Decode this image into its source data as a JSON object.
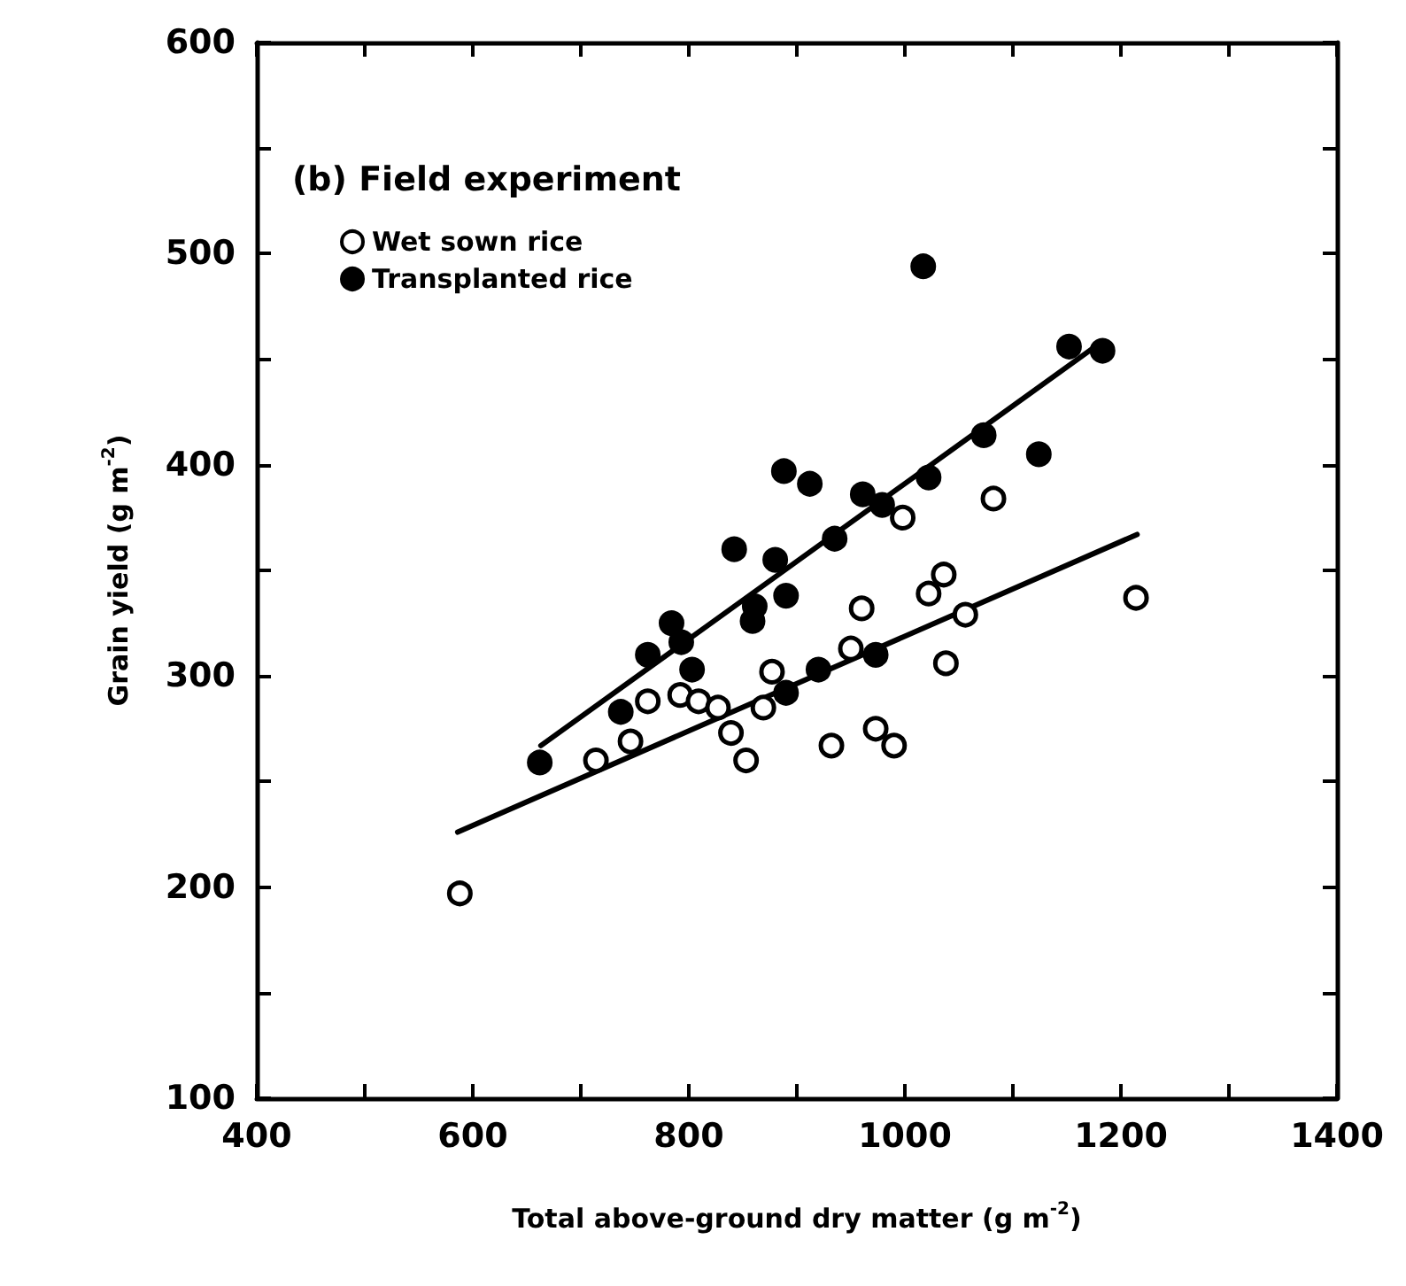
{
  "chart_data": {
    "type": "scatter",
    "legend_title": "(b) Field experiment",
    "xlabel": "Total above-ground dry matter (g m$^{-2}$)",
    "ylabel": "Grain yield (g m$^{-2}$)",
    "xlim": [
      400,
      1400
    ],
    "xticks": [
      400,
      {
        "value": 500,
        "label": null
      },
      600,
      {
        "value": 700,
        "label": null
      },
      800,
      {
        "value": 900,
        "label": null
      },
      1000,
      {
        "value": 1100,
        "label": null
      },
      1200,
      {
        "value": 1300,
        "label": null
      },
      1400
    ],
    "ylim": [
      100,
      600
    ],
    "yticks": [
      100,
      {
        "value": 150,
        "label": null
      },
      200,
      {
        "value": 250,
        "label": null
      },
      300,
      {
        "value": 350,
        "label": null
      },
      400,
      {
        "value": 450,
        "label": null
      },
      500,
      {
        "value": 550,
        "label": null
      },
      600
    ],
    "grid": false,
    "legend": "top left",
    "marker": "circle",
    "series": [
      {
        "name": "Wet sown rice",
        "color": "#ffffff",
        "x": [
          588,
          714,
          746,
          762,
          792,
          809,
          827,
          839,
          853,
          869,
          877,
          932,
          973,
          990,
          950,
          960,
          998,
          1022,
          1036,
          1038,
          1056,
          1082,
          1214
        ],
        "values": [
          197,
          260,
          269,
          288,
          291,
          288,
          285,
          273,
          260,
          285,
          302,
          267,
          275,
          267,
          313,
          332,
          375,
          339,
          348,
          306,
          329,
          384,
          337
        ]
      },
      {
        "name": "Transplanted rice",
        "color": "#000000",
        "x": [
          1017,
          888,
          912,
          961,
          979,
          1022,
          1073,
          1124,
          1152,
          1183,
          935,
          842,
          880,
          890,
          861,
          859,
          784,
          762,
          793,
          803,
          737,
          662,
          920,
          973,
          890
        ],
        "values": [
          494,
          397,
          391,
          386,
          381,
          394,
          414,
          405,
          456,
          454,
          365,
          360,
          355,
          338,
          333,
          326,
          325,
          310,
          316,
          303,
          283,
          259,
          303,
          310,
          292
        ]
      },
      {
        "type": "line",
        "color": "#000000",
        "marker": "none",
        "x": [
          663,
          1179
        ],
        "values": [
          267,
          457
        ]
      },
      {
        "type": "line",
        "color": "#000000",
        "marker": "none",
        "x": [
          586,
          1215
        ],
        "values": [
          226,
          367
        ]
      }
    ]
  }
}
